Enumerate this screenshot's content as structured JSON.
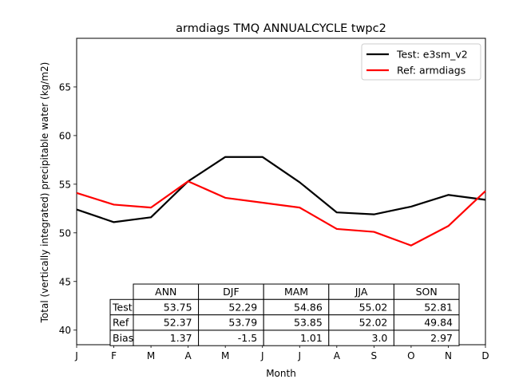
{
  "chart_data": {
    "type": "line",
    "title": "armdiags TMQ ANNUALCYCLE twpc2",
    "xlabel": "Month",
    "ylabel": "Total (vertically integrated) precipitable water (kg/m2)",
    "categories": [
      "J",
      "F",
      "M",
      "A",
      "M",
      "J",
      "J",
      "A",
      "S",
      "O",
      "N",
      "D"
    ],
    "xlim": [
      0,
      11
    ],
    "ylim": [
      38.5,
      70
    ],
    "yticks": [
      40,
      45,
      50,
      55,
      60,
      65
    ],
    "grid": false,
    "legend_position": "top-right",
    "series": [
      {
        "name": "Test: e3sm_v2",
        "color": "#000000",
        "values": [
          52.4,
          51.1,
          51.6,
          55.3,
          57.8,
          57.8,
          55.2,
          52.1,
          51.9,
          52.7,
          53.9,
          53.4
        ]
      },
      {
        "name": "Ref: armdiags",
        "color": "#ff0000",
        "values": [
          54.1,
          52.9,
          52.6,
          55.3,
          53.6,
          53.1,
          52.6,
          50.4,
          50.1,
          48.7,
          50.7,
          54.3
        ]
      }
    ],
    "table": {
      "columns": [
        "ANN",
        "DJF",
        "MAM",
        "JJA",
        "SON"
      ],
      "rows": [
        {
          "label": "Test",
          "values": [
            "53.75",
            "52.29",
            "54.86",
            "55.02",
            "52.81"
          ]
        },
        {
          "label": "Ref",
          "values": [
            "52.37",
            "53.79",
            "53.85",
            "52.02",
            "49.84"
          ]
        },
        {
          "label": "Bias",
          "values": [
            "1.37",
            "-1.5",
            "1.01",
            "3.0",
            "2.97"
          ]
        }
      ]
    }
  }
}
